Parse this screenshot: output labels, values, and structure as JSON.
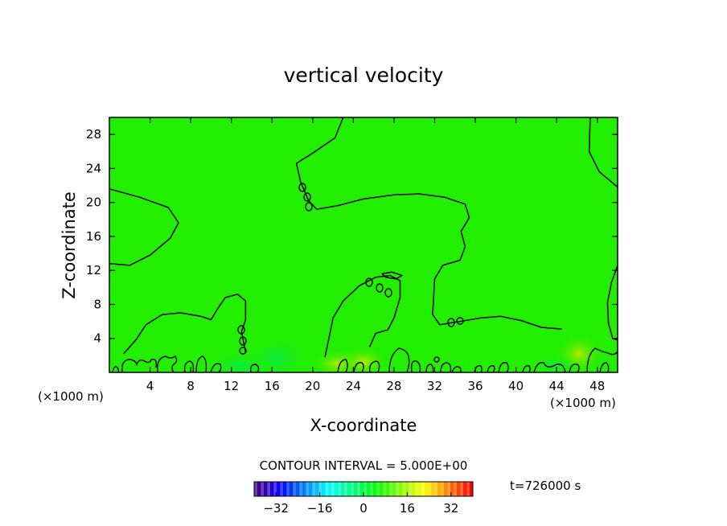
{
  "chart_data": {
    "type": "heatmap",
    "title": "vertical velocity",
    "xlabel": "X-coordinate",
    "ylabel": "Z-coordinate",
    "x_unit_label": "(×1000 m)",
    "y_unit_label": "(×1000 m)",
    "xlim": [
      0,
      50
    ],
    "ylim": [
      0,
      30
    ],
    "x_ticks": [
      4,
      8,
      12,
      16,
      20,
      24,
      28,
      32,
      36,
      40,
      44,
      48
    ],
    "y_ticks": [
      4,
      8,
      12,
      16,
      20,
      24,
      28
    ],
    "contour_interval_label": "CONTOUR INTERVAL = 5.000E+00",
    "time_label": "t=726000 s",
    "colorbar": {
      "min": -40,
      "max": 40,
      "ticks": [
        -32,
        -16,
        0,
        16,
        32
      ],
      "colormap": "rainbow"
    },
    "field_background_color": "#22ee00",
    "grid": false,
    "contours": [
      {
        "level": 0,
        "points": [
          [
            0,
            21.6
          ],
          [
            3,
            20.6
          ],
          [
            5.8,
            19.4
          ],
          [
            6.8,
            17.6
          ],
          [
            6,
            15.8
          ],
          [
            4,
            13.8
          ],
          [
            2,
            12.6
          ],
          [
            0,
            12.8
          ]
        ]
      },
      {
        "level": 0,
        "points": [
          [
            23,
            30
          ],
          [
            22.2,
            27.6
          ],
          [
            20,
            25.8
          ],
          [
            18.4,
            24.6
          ],
          [
            18.8,
            22.5
          ],
          [
            19.6,
            20.2
          ],
          [
            20.4,
            19.2
          ],
          [
            22.4,
            19.6
          ],
          [
            25,
            20.4
          ],
          [
            28,
            20.9
          ],
          [
            30.5,
            21
          ],
          [
            33,
            20.6
          ],
          [
            35,
            19.8
          ],
          [
            35.4,
            18.2
          ],
          [
            34.6,
            16.6
          ],
          [
            35,
            14.8
          ],
          [
            34.5,
            13.2
          ],
          [
            32.8,
            12.6
          ],
          [
            32,
            11
          ],
          [
            31.9,
            8.8
          ],
          [
            31.8,
            6.8
          ],
          [
            32.5,
            5.6
          ],
          [
            34.5,
            6
          ],
          [
            36.5,
            6.4
          ],
          [
            38.5,
            6.6
          ],
          [
            40.5,
            6.1
          ],
          [
            42.5,
            5.3
          ],
          [
            44.5,
            5.1
          ]
        ]
      },
      {
        "level": 0,
        "points": [
          [
            47.3,
            30
          ],
          [
            47.2,
            26
          ],
          [
            48.2,
            23.6
          ],
          [
            50,
            21.8
          ]
        ]
      },
      {
        "level": 0,
        "points": [
          [
            50,
            12.6
          ],
          [
            49.4,
            10.6
          ],
          [
            49,
            8.2
          ],
          [
            49.1,
            5.8
          ],
          [
            49.5,
            4
          ],
          [
            50,
            3.8
          ]
        ]
      },
      {
        "level": 0,
        "points": [
          [
            1.4,
            2.2
          ],
          [
            2.6,
            3.8
          ],
          [
            3.6,
            5.6
          ],
          [
            5.2,
            6.8
          ],
          [
            7,
            7
          ],
          [
            9,
            6.6
          ],
          [
            10,
            6.2
          ],
          [
            10.6,
            7.4
          ],
          [
            11.4,
            8.8
          ],
          [
            12.6,
            9.2
          ],
          [
            13.4,
            8.4
          ],
          [
            13.4,
            6.2
          ],
          [
            13,
            4.8
          ],
          [
            13.4,
            2.4
          ]
        ]
      },
      {
        "level": 0,
        "points": [
          [
            21.2,
            1.8
          ],
          [
            21.6,
            4
          ],
          [
            22,
            6.4
          ],
          [
            23,
            8.4
          ],
          [
            24.6,
            10.2
          ],
          [
            26.2,
            11.2
          ],
          [
            27.6,
            11.4
          ],
          [
            28.6,
            10.8
          ],
          [
            28.6,
            8.8
          ],
          [
            28,
            6.4
          ],
          [
            27.4,
            5
          ],
          [
            26.2,
            4.6
          ],
          [
            25.6,
            3
          ]
        ]
      },
      {
        "level": 0,
        "points": [
          [
            26.8,
            11.6
          ],
          [
            27.8,
            11.8
          ],
          [
            28.8,
            11.4
          ],
          [
            28.2,
            11
          ],
          [
            27.2,
            11.2
          ],
          [
            26.8,
            11.6
          ]
        ]
      }
    ]
  }
}
